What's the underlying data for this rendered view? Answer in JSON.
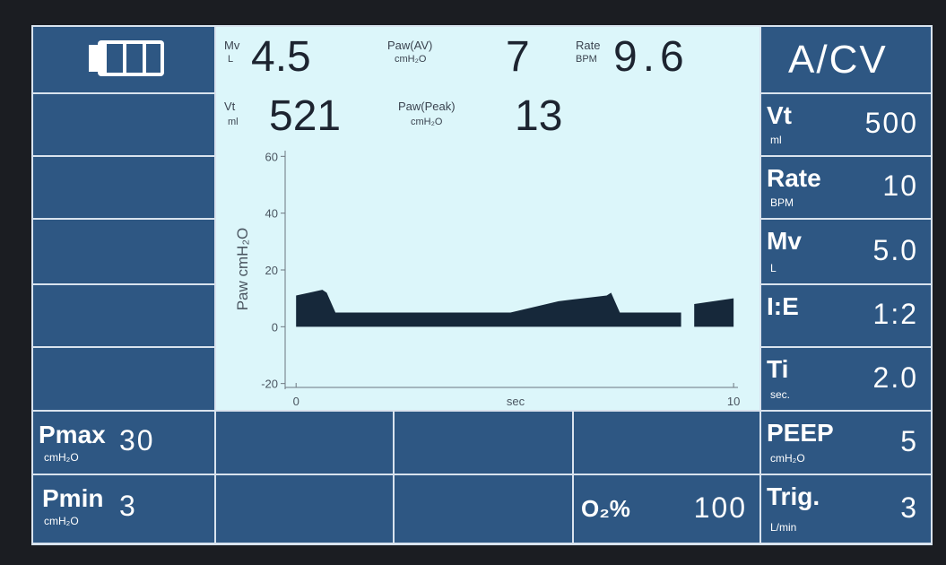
{
  "header": {
    "mode": "A/CV"
  },
  "readouts": [
    {
      "label": "Mv",
      "unit": "L",
      "value": "4.5"
    },
    {
      "label": "Paw(AV)",
      "unit": "cmH₂O",
      "value": "7"
    },
    {
      "label": "Rate",
      "unit": "BPM",
      "value": "9.6"
    },
    {
      "label": "Vt",
      "unit": "ml",
      "value": "521"
    },
    {
      "label": "Paw(Peak)",
      "unit": "cmH₂O",
      "value": "13"
    }
  ],
  "settings_right": [
    {
      "label": "Vt",
      "unit": "ml",
      "value": "500"
    },
    {
      "label": "Rate",
      "unit": "BPM",
      "value": "10"
    },
    {
      "label": "Mv",
      "unit": "L",
      "value": "5.0"
    },
    {
      "label": "I:E",
      "value": "1:2"
    },
    {
      "label": "Ti",
      "unit": "sec.",
      "value": "2.0"
    },
    {
      "label": "PEEP",
      "unit": "cmH₂O",
      "value": "5"
    },
    {
      "label": "Trig.",
      "unit": "L/min",
      "value": "3"
    }
  ],
  "settings_left": [
    {
      "label": "Pmax",
      "unit": "cmH₂O",
      "value": "30"
    },
    {
      "label": "Pmin",
      "unit": "cmH₂O",
      "value": "3"
    }
  ],
  "oxygen": {
    "label": "O₂%",
    "value": "100"
  },
  "chart_data": {
    "type": "area",
    "ylabel": "Paw cmH₂O",
    "xlabel": "sec",
    "color": "#16283a",
    "x": [
      0,
      0.3,
      0.6,
      0.7,
      0.9,
      4.9,
      6.0,
      7.1,
      7.2,
      7.4,
      8.8,
      8.9,
      9.1,
      10
    ],
    "values": [
      11,
      12,
      13,
      12,
      5,
      5,
      9,
      11,
      12,
      5,
      5,
      null,
      8,
      10
    ],
    "xlim": [
      -0.25,
      10.1
    ],
    "ylim": [
      -22,
      62
    ],
    "xticks": [
      0,
      10
    ],
    "yticks": [
      60,
      40,
      20,
      0,
      -20
    ]
  }
}
